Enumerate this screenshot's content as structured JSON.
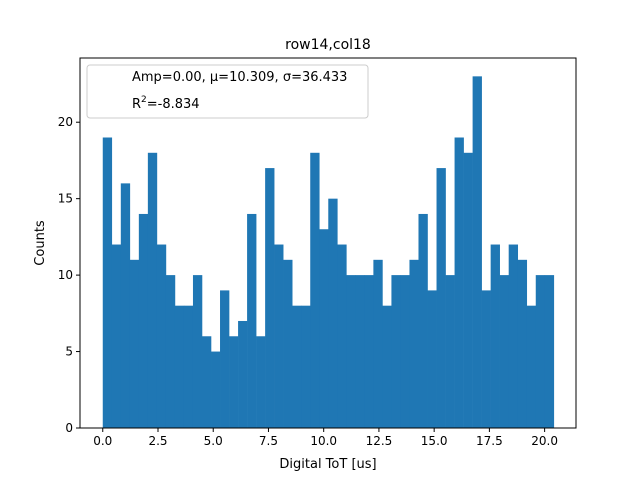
{
  "chart_data": {
    "type": "bar",
    "title": "row14,col18",
    "xlabel": "Digital ToT [us]",
    "ylabel": "Counts",
    "xlim": [
      -1.03,
      21.42
    ],
    "ylim": [
      0,
      24.2
    ],
    "xticks": [
      "0.0",
      "2.5",
      "5.0",
      "7.5",
      "10.0",
      "12.5",
      "15.0",
      "17.5",
      "20.0"
    ],
    "xtick_values": [
      0,
      2.5,
      5,
      7.5,
      10,
      12.5,
      15,
      17.5,
      20
    ],
    "yticks": [
      "0",
      "5",
      "10",
      "15",
      "20"
    ],
    "ytick_values": [
      0,
      5,
      10,
      15,
      20
    ],
    "bin_start": 0.0,
    "bin_width": 0.4083,
    "values": [
      19,
      12,
      16,
      11,
      14,
      18,
      12,
      10,
      8,
      8,
      10,
      6,
      5,
      9,
      6,
      7,
      14,
      6,
      17,
      12,
      11,
      8,
      8,
      18,
      13,
      15,
      12,
      10,
      10,
      10,
      11,
      8,
      10,
      10,
      11,
      14,
      9,
      17,
      10,
      19,
      18,
      23,
      9,
      12,
      10,
      12,
      11,
      8,
      10,
      10
    ],
    "bar_color": "#1f77b4",
    "legend": {
      "placement": "top-left",
      "line1": "Amp=0.00, μ=10.309, σ=36.433",
      "line2_prefix": "R",
      "line2_sup": "2",
      "line2_rest": "=-8.834"
    }
  }
}
